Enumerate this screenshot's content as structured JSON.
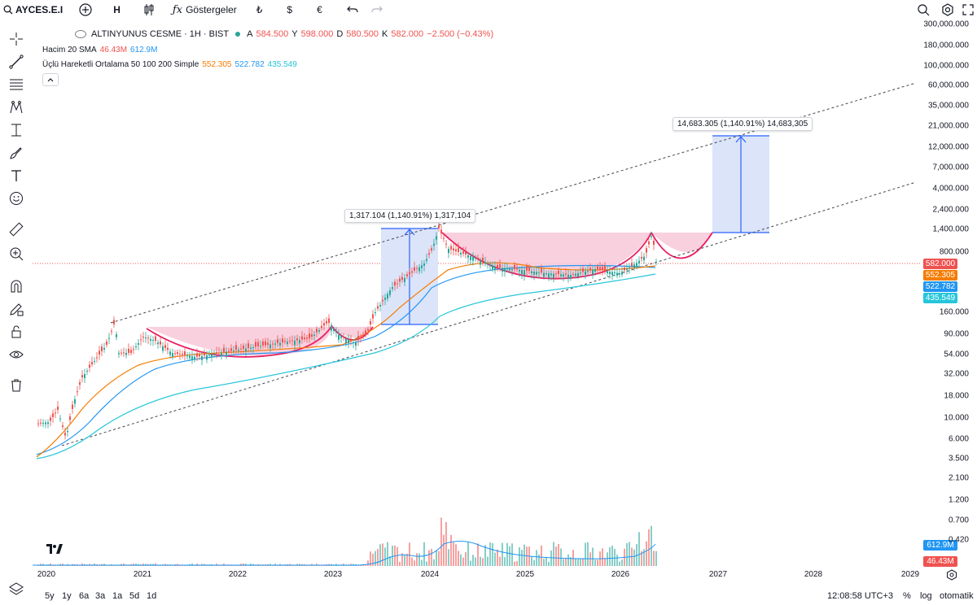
{
  "toolbar": {
    "symbol": "AYCES.E.I",
    "interval": "H",
    "indicators_label": "Göstergeler",
    "currency_try": "₺",
    "currency_usd": "$",
    "currency_eur": "€"
  },
  "legend": {
    "title": "ALTINYUNUS CESME · 1H · BIST",
    "ohlc": {
      "open_label": "A",
      "open": "584.500",
      "high_label": "Y",
      "high": "598.000",
      "low_label": "D",
      "low": "580.500",
      "close_label": "K",
      "close": "582.000",
      "change": "−2.500 (−0.43%)"
    },
    "volume": {
      "name": "Hacim 20 SMA",
      "v1": "46.43M",
      "v2": "612.9M"
    },
    "ma": {
      "name": "Üçlü Hareketli Ortalama 50 100 200 Simple",
      "m50": "552.305",
      "m100": "522.782",
      "m200": "435.549"
    }
  },
  "price_axis": {
    "ticks": [
      "300,000.000",
      "180,000.000",
      "100,000.000",
      "60,000.000",
      "35,000.000",
      "21,000.000",
      "12,000.000",
      "7,000.000",
      "4,000.000",
      "2,400.000",
      "1,400.000",
      "800.000",
      "160.000",
      "90.000",
      "54.000",
      "32.000",
      "18.000",
      "10.000",
      "6.000",
      "3.500",
      "2.100",
      "1.200",
      "0.700",
      "0.420"
    ],
    "badges": {
      "last": "582.000",
      "ma50": "552.305",
      "ma100": "522.782",
      "ma200": "435.549",
      "vol_sma": "612.9M",
      "vol": "46.43M"
    }
  },
  "time_axis": {
    "labels": [
      "2020",
      "2021",
      "2022",
      "2023",
      "2024",
      "2025",
      "2026",
      "2027",
      "2028",
      "2029"
    ]
  },
  "annotations": {
    "measure1": "1,317.104 (1,140.91%) 1,317,104",
    "measure2": "14,683.305 (1,140.91%) 14,683,305"
  },
  "bottom": {
    "ranges": [
      "5y",
      "1y",
      "6a",
      "3a",
      "1a",
      "5d",
      "1d"
    ],
    "clock": "12:08:58 UTC+3",
    "percent": "%",
    "log": "log",
    "auto": "otomatik"
  },
  "colors": {
    "ma50": "#f57c00",
    "ma100": "#2196f3",
    "ma200": "#26c6da",
    "up": "#26a69a",
    "down": "#ef5350",
    "measure_fill": "#dbe4f9",
    "cup_fill": "#f8c8d8",
    "cup_line": "#e91e63"
  }
}
